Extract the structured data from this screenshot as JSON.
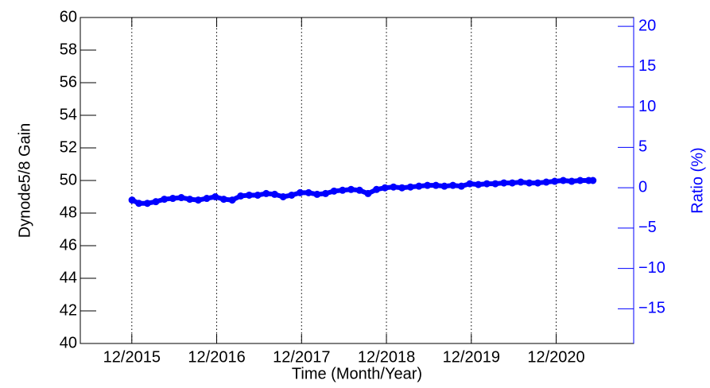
{
  "chart_data": {
    "type": "scatter",
    "ylabel": "Dynode5/8 Gain",
    "xlabel": "Time (Month/Year)",
    "y2label": "Ratio (%)",
    "xlim": [
      2015.31,
      2021.83
    ],
    "xticks": [
      {
        "value": 2015.917,
        "label": "12/2015"
      },
      {
        "value": 2016.917,
        "label": "12/2016"
      },
      {
        "value": 2017.917,
        "label": "12/2017"
      },
      {
        "value": 2018.917,
        "label": "12/2018"
      },
      {
        "value": 2019.917,
        "label": "12/2019"
      },
      {
        "value": 2020.917,
        "label": "12/2020"
      }
    ],
    "ylim": [
      40,
      60
    ],
    "yticks": [
      40,
      42,
      44,
      46,
      48,
      50,
      52,
      54,
      56,
      58,
      60
    ],
    "y2lim": [
      -19.3,
      21.1
    ],
    "y2ticks": [
      {
        "value": -15,
        "label": "−15"
      },
      {
        "value": -10,
        "label": "−10"
      },
      {
        "value": -5,
        "label": "−5"
      },
      0,
      5,
      10,
      15,
      20
    ],
    "grid": "x",
    "series": [
      {
        "color": "#0000ff",
        "x": [
          2015.92,
          2016.0,
          2016.1,
          2016.2,
          2016.3,
          2016.4,
          2016.5,
          2016.6,
          2016.7,
          2016.8,
          2016.9,
          2017.0,
          2017.1,
          2017.2,
          2017.3,
          2017.4,
          2017.5,
          2017.6,
          2017.7,
          2017.8,
          2017.9,
          2018.0,
          2018.1,
          2018.2,
          2018.3,
          2018.4,
          2018.5,
          2018.6,
          2018.7,
          2018.8,
          2018.9,
          2019.0,
          2019.1,
          2019.2,
          2019.3,
          2019.4,
          2019.5,
          2019.6,
          2019.7,
          2019.8,
          2019.9,
          2020.0,
          2020.1,
          2020.2,
          2020.3,
          2020.4,
          2020.5,
          2020.6,
          2020.7,
          2020.8,
          2020.9,
          2021.0,
          2021.1,
          2021.2,
          2021.3,
          2021.35
        ],
        "values": [
          48.8,
          48.6,
          48.6,
          48.7,
          48.85,
          48.9,
          48.95,
          48.85,
          48.8,
          48.9,
          49.0,
          48.85,
          48.8,
          49.05,
          49.1,
          49.1,
          49.2,
          49.15,
          49.0,
          49.1,
          49.25,
          49.25,
          49.15,
          49.2,
          49.35,
          49.4,
          49.45,
          49.4,
          49.2,
          49.45,
          49.55,
          49.6,
          49.55,
          49.6,
          49.65,
          49.7,
          49.7,
          49.65,
          49.7,
          49.65,
          49.8,
          49.75,
          49.8,
          49.8,
          49.85,
          49.85,
          49.9,
          49.85,
          49.85,
          49.9,
          49.95,
          50.0,
          49.95,
          50.0,
          50.0,
          50.0
        ]
      }
    ]
  }
}
